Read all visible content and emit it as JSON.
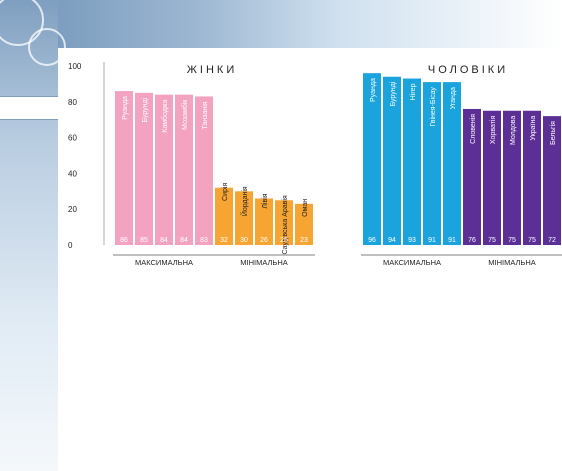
{
  "colors": {
    "pink": "#f3a3c0",
    "orange": "#f6a533",
    "blue": "#1aa3dd",
    "purple": "#5b2f95"
  },
  "chart_data": {
    "type": "bar",
    "ylim": [
      0,
      100
    ],
    "yticks": [
      "100",
      "80",
      "60",
      "40",
      "20",
      "0"
    ],
    "panels": [
      {
        "title": "ЖІНКИ",
        "groups": [
          {
            "label": "МАКСИМАЛЬНА",
            "color": "#f3a3c0",
            "categories": [
              "Руанда",
              "Бурунді",
              "Камбоджа",
              "Мозамбік",
              "Танзанія"
            ],
            "values": [
              86,
              85,
              84,
              84,
              83
            ]
          },
          {
            "label": "МІНІМАЛЬНА",
            "color": "#f6a533",
            "categories": [
              "Сирія",
              "Йорданія",
              "Лівія",
              "Саудівська Аравія",
              "Оман"
            ],
            "values": [
              32,
              30,
              26,
              25,
              23
            ]
          }
        ]
      },
      {
        "title": "ЧОЛОВІКИ",
        "groups": [
          {
            "label": "МАКСИМАЛЬНА",
            "color": "#1aa3dd",
            "categories": [
              "Руанда",
              "Бурунді",
              "Нігер",
              "Гвінея-Бісау",
              "Уганда"
            ],
            "values": [
              96,
              94,
              93,
              91,
              91
            ]
          },
          {
            "label": "МІНІМАЛЬНА",
            "color": "#5b2f95",
            "categories": [
              "Словенія",
              "Хорватія",
              "Молдова",
              "Україна",
              "Бельгія"
            ],
            "values": [
              76,
              75,
              75,
              75,
              72
            ]
          }
        ]
      }
    ]
  }
}
